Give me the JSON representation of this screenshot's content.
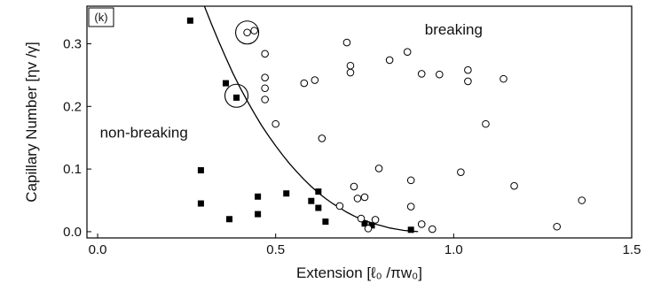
{
  "chart_data": {
    "type": "scatter",
    "panel_label": "(k)",
    "xlabel": "Extension [ℓ₀ /πw₀]",
    "ylabel": "Capillary Number [ηv /γ]",
    "xlim": [
      -0.03,
      1.5
    ],
    "ylim": [
      -0.01,
      0.36
    ],
    "x_ticks": [
      0.0,
      0.5,
      1.0,
      1.5
    ],
    "x_tick_labels": [
      "0.0",
      "0.5",
      "1.0",
      "1.5"
    ],
    "y_ticks": [
      0.0,
      0.1,
      0.2,
      0.3
    ],
    "y_tick_labels": [
      "0.0",
      "0.1",
      "0.2",
      "0.3"
    ],
    "grid": false,
    "legend": "none",
    "annotations": [
      {
        "text": "breaking",
        "x": 1.0,
        "y": 0.315
      },
      {
        "text": "non-breaking",
        "x": 0.13,
        "y": 0.15
      }
    ],
    "series": [
      {
        "marker": "filled-square",
        "color": "#000000",
        "x": [
          0.26,
          0.29,
          0.29,
          0.36,
          0.37,
          0.39,
          0.45,
          0.45,
          0.53,
          0.6,
          0.62,
          0.62,
          0.64,
          0.75,
          0.77,
          0.88
        ],
        "y": [
          0.337,
          0.098,
          0.045,
          0.237,
          0.02,
          0.214,
          0.056,
          0.028,
          0.061,
          0.049,
          0.064,
          0.038,
          0.016,
          0.013,
          0.01,
          0.003
        ]
      },
      {
        "marker": "open-circle",
        "color": "#000000",
        "x": [
          0.42,
          0.44,
          0.47,
          0.47,
          0.47,
          0.47,
          0.5,
          0.58,
          0.61,
          0.63,
          0.68,
          0.7,
          0.71,
          0.71,
          0.72,
          0.73,
          0.74,
          0.75,
          0.76,
          0.78,
          0.79,
          0.82,
          0.87,
          0.88,
          0.88,
          0.91,
          0.91,
          0.94,
          0.96,
          1.02,
          1.04,
          1.04,
          1.09,
          1.14,
          1.17,
          1.29,
          1.36
        ],
        "y": [
          0.318,
          0.321,
          0.284,
          0.246,
          0.229,
          0.211,
          0.172,
          0.237,
          0.242,
          0.149,
          0.041,
          0.302,
          0.265,
          0.254,
          0.072,
          0.053,
          0.021,
          0.055,
          0.005,
          0.019,
          0.101,
          0.274,
          0.287,
          0.082,
          0.04,
          0.252,
          0.012,
          0.004,
          0.251,
          0.095,
          0.258,
          0.24,
          0.172,
          0.244,
          0.073,
          0.008,
          0.05
        ]
      }
    ],
    "highlight_circles": [
      {
        "x": 0.42,
        "y": 0.318
      },
      {
        "x": 0.39,
        "y": 0.217
      }
    ],
    "boundary_curve": {
      "style": "solid-line",
      "x": [
        0.3,
        0.32,
        0.34,
        0.36,
        0.38,
        0.4,
        0.42,
        0.44,
        0.46,
        0.48,
        0.5,
        0.52,
        0.54,
        0.56,
        0.58,
        0.6,
        0.62,
        0.64,
        0.66,
        0.68,
        0.7,
        0.72,
        0.74,
        0.76,
        0.78,
        0.8,
        0.82,
        0.84,
        0.86,
        0.88,
        0.9
      ],
      "y": [
        0.36,
        0.331,
        0.304,
        0.278,
        0.253,
        0.23,
        0.209,
        0.189,
        0.17,
        0.153,
        0.137,
        0.122,
        0.108,
        0.095,
        0.083,
        0.072,
        0.062,
        0.053,
        0.045,
        0.038,
        0.031,
        0.025,
        0.02,
        0.016,
        0.012,
        0.009,
        0.006,
        0.004,
        0.002,
        0.001,
        0.0
      ]
    }
  }
}
